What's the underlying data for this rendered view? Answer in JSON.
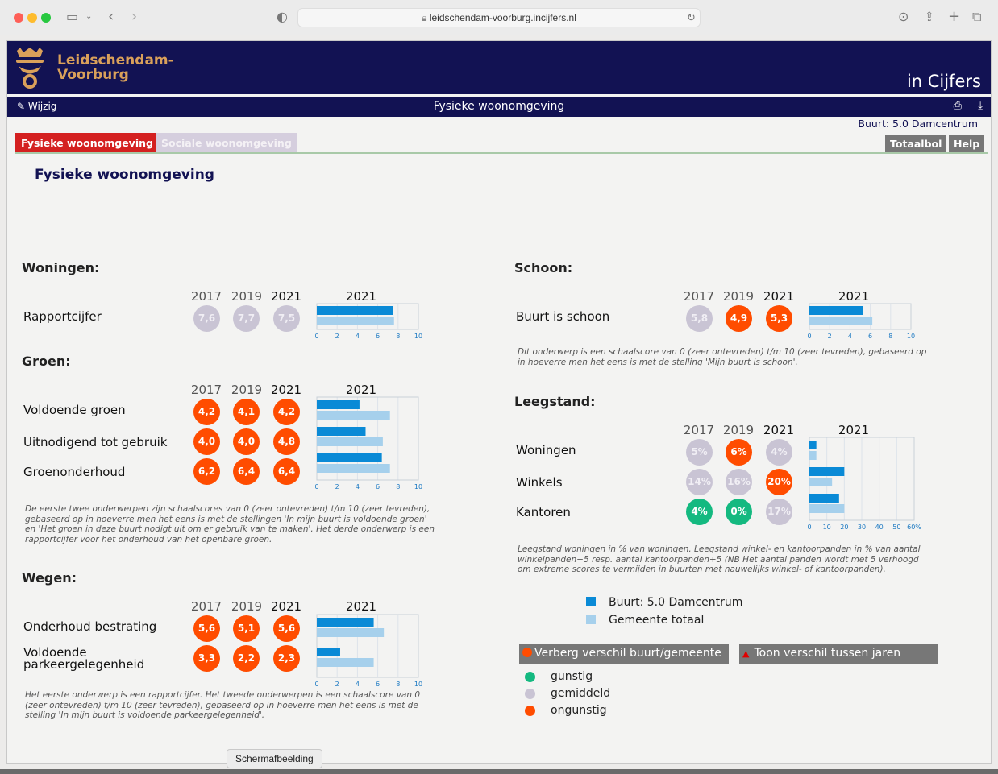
{
  "browser": {
    "url": "leidschendam-voorburg.incijfers.nl",
    "tooltip": "Schermafbeelding"
  },
  "header": {
    "logo_text": "Leidschendam-\nVoorburg",
    "brand": "in Cijfers"
  },
  "titlebar": {
    "edit_label": "Wijzig",
    "title": "Fysieke woonomgeving",
    "icons": [
      "print-icon",
      "download-icon"
    ]
  },
  "buurt_label": "Buurt: 5.0 Damcentrum",
  "tabs": [
    {
      "label": "Fysieke woonomgeving",
      "active": true
    },
    {
      "label": "Sociale woonomgeving",
      "active": false
    }
  ],
  "buttons": {
    "totaalbol": "Totaalbol",
    "help": "Help"
  },
  "main_title": "Fysieke woonomgeving",
  "colors": {
    "navy": "#121253",
    "buurt_bar": "#0a8ad6",
    "gemeente_bar": "#a6d0ec",
    "gunstig": "#14b980",
    "gemiddeld": "#c9c4d4",
    "ongunstig": "#ff4c00"
  },
  "years": [
    "2017",
    "2019",
    "2021"
  ],
  "chart_year": "2021",
  "woningen": {
    "title": "Woningen:",
    "rows": [
      {
        "label": "Rapportcijfer",
        "values": [
          "7,6",
          "7,7",
          "7,5"
        ],
        "status": [
          "grey",
          "grey",
          "grey"
        ]
      }
    ]
  },
  "groen": {
    "title": "Groen:",
    "rows": [
      {
        "label": "Voldoende groen",
        "values": [
          "4,2",
          "4,1",
          "4,2"
        ],
        "status": [
          "red",
          "red",
          "red"
        ]
      },
      {
        "label": "Uitnodigend tot gebruik",
        "values": [
          "4,0",
          "4,0",
          "4,8"
        ],
        "status": [
          "red",
          "red",
          "red"
        ]
      },
      {
        "label": "Groenonderhoud",
        "values": [
          "6,2",
          "6,4",
          "6,4"
        ],
        "status": [
          "red",
          "red",
          "red"
        ]
      }
    ],
    "note": "De eerste twee onderwerpen zijn schaalscores van 0 (zeer ontevreden) t/m 10 (zeer tevreden),\ngebaseerd op in hoeverre men het eens is met de stellingen 'In mijn buurt is voldoende groen'\nen 'Het groen in deze buurt nodigt uit om er gebruik van te maken'. Het derde onderwerp is een\nrapportcijfer voor het onderhoud van het openbare groen."
  },
  "wegen": {
    "title": "Wegen:",
    "rows": [
      {
        "label": "Onderhoud bestrating",
        "values": [
          "5,6",
          "5,1",
          "5,6"
        ],
        "status": [
          "red",
          "red",
          "red"
        ]
      },
      {
        "label": "Voldoende\nparkeergelegenheid",
        "values": [
          "3,3",
          "2,2",
          "2,3"
        ],
        "status": [
          "red",
          "red",
          "red"
        ]
      }
    ],
    "note": "Het eerste onderwerp is een rapportcijfer. Het tweede onderwerpen is een schaalscore van 0\n(zeer ontevreden) t/m 10 (zeer tevreden), gebaseerd op in hoeverre men het eens is met de\nstelling 'In mijn buurt is voldoende parkeergelegenheid'."
  },
  "schoon": {
    "title": "Schoon:",
    "rows": [
      {
        "label": "Buurt is schoon",
        "values": [
          "5,8",
          "4,9",
          "5,3"
        ],
        "status": [
          "grey",
          "red",
          "red"
        ]
      }
    ],
    "note": "Dit onderwerp is een schaalscore van 0 (zeer ontevreden) t/m 10 (zeer tevreden), gebaseerd op\nin hoeverre men het eens is met de stelling 'Mijn buurt is schoon'."
  },
  "leegstand": {
    "title": "Leegstand:",
    "rows": [
      {
        "label": "Woningen",
        "values": [
          "5%",
          "6%",
          "4%"
        ],
        "status": [
          "grey",
          "red",
          "grey"
        ]
      },
      {
        "label": "Winkels",
        "values": [
          "14%",
          "16%",
          "20%"
        ],
        "status": [
          "grey",
          "grey",
          "red"
        ]
      },
      {
        "label": "Kantoren",
        "values": [
          "4%",
          "0%",
          "17%"
        ],
        "status": [
          "green",
          "green",
          "grey"
        ]
      }
    ],
    "note": "Leegstand woningen in % van woningen. Leegstand winkel- en kantoorpanden in % van aantal\nwinkelpanden+5 resp. aantal kantoorpanden+5 (NB Het aantal panden wordt met 5 verhoogd\nom extreme scores te vermijden in buurten met nauwelijks winkel- of kantoorpanden)."
  },
  "legend": {
    "buurt": "Buurt: 5.0 Damcentrum",
    "gemeente": "Gemeente totaal"
  },
  "toggles": {
    "verberg": "Verberg verschil buurt/gemeente",
    "toon": "Toon verschil tussen jaren"
  },
  "status_legend": {
    "gunstig": "gunstig",
    "gemiddeld": "gemiddeld",
    "ongunstig": "ongunstig"
  },
  "chart_data": [
    {
      "type": "bar",
      "id": "woningen",
      "orientation": "horizontal",
      "categories": [
        "Rapportcijfer"
      ],
      "xlim": [
        0,
        10
      ],
      "xticks": [
        "0",
        "2",
        "4",
        "6",
        "8",
        "10"
      ],
      "series": [
        {
          "name": "Buurt: 5.0 Damcentrum",
          "values": [
            7.5
          ]
        },
        {
          "name": "Gemeente totaal",
          "values": [
            7.6
          ]
        }
      ]
    },
    {
      "type": "bar",
      "id": "groen",
      "orientation": "horizontal",
      "categories": [
        "Voldoende groen",
        "Uitnodigend tot gebruik",
        "Groenonderhoud"
      ],
      "xlim": [
        0,
        10
      ],
      "xticks": [
        "0",
        "2",
        "4",
        "6",
        "8",
        "10"
      ],
      "series": [
        {
          "name": "Buurt: 5.0 Damcentrum",
          "values": [
            4.2,
            4.8,
            6.4
          ]
        },
        {
          "name": "Gemeente totaal",
          "values": [
            7.2,
            6.5,
            7.2
          ]
        }
      ]
    },
    {
      "type": "bar",
      "id": "wegen",
      "orientation": "horizontal",
      "categories": [
        "Onderhoud bestrating",
        "Voldoende parkeergelegenheid"
      ],
      "xlim": [
        0,
        10
      ],
      "xticks": [
        "0",
        "2",
        "4",
        "6",
        "8",
        "10"
      ],
      "series": [
        {
          "name": "Buurt: 5.0 Damcentrum",
          "values": [
            5.6,
            2.3
          ]
        },
        {
          "name": "Gemeente totaal",
          "values": [
            6.6,
            5.6
          ]
        }
      ]
    },
    {
      "type": "bar",
      "id": "schoon",
      "orientation": "horizontal",
      "categories": [
        "Buurt is schoon"
      ],
      "xlim": [
        0,
        10
      ],
      "xticks": [
        "0",
        "2",
        "4",
        "6",
        "8",
        "10"
      ],
      "series": [
        {
          "name": "Buurt: 5.0 Damcentrum",
          "values": [
            5.3
          ]
        },
        {
          "name": "Gemeente totaal",
          "values": [
            6.2
          ]
        }
      ]
    },
    {
      "type": "bar",
      "id": "leegstand",
      "orientation": "horizontal",
      "categories": [
        "Woningen",
        "Winkels",
        "Kantoren"
      ],
      "xlim": [
        0,
        60
      ],
      "xticks": [
        "0",
        "10",
        "20",
        "30",
        "40",
        "50",
        "60%"
      ],
      "series": [
        {
          "name": "Buurt: 5.0 Damcentrum",
          "values": [
            4,
            20,
            17
          ]
        },
        {
          "name": "Gemeente totaal",
          "values": [
            4,
            13,
            20
          ]
        }
      ]
    }
  ]
}
